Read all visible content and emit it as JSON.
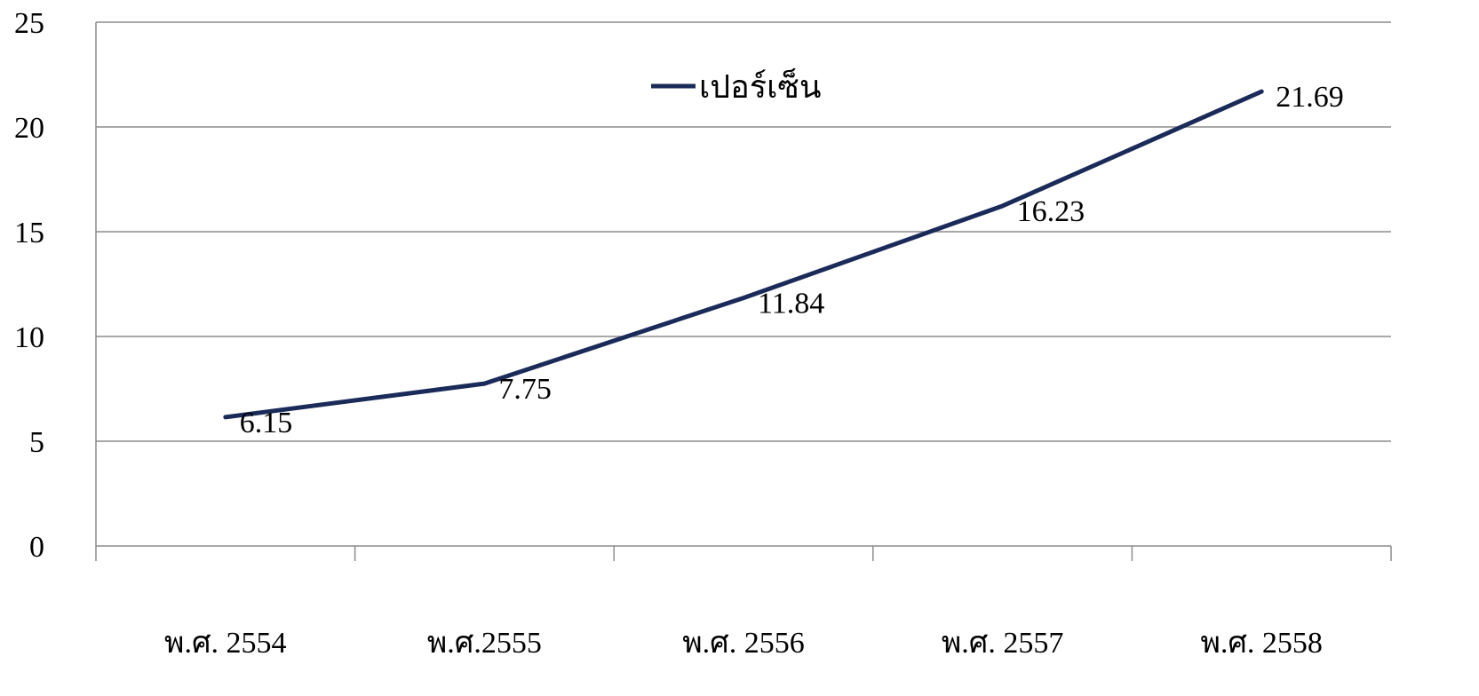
{
  "chart_data": {
    "type": "line",
    "title": "",
    "xlabel": "",
    "ylabel": "",
    "categories": [
      "พ.ศ. 2554",
      "พ.ศ.2555",
      "พ.ศ. 2556",
      "พ.ศ. 2557",
      "พ.ศ. 2558"
    ],
    "series": [
      {
        "name": "เปอร์เซ็น",
        "values": [
          6.15,
          7.75,
          11.84,
          16.23,
          21.69
        ],
        "data_labels": [
          "6.15",
          "7.75",
          "11.84",
          "16.23",
          "21.69"
        ],
        "color": "#1a2b5a"
      }
    ],
    "ylim": [
      0,
      25
    ],
    "yticks": [
      0,
      5,
      10,
      15,
      20,
      25
    ],
    "ytick_labels": [
      "0",
      "5",
      "10",
      "15",
      "20",
      "25"
    ],
    "grid": "horizontal",
    "legend": "top-center"
  },
  "colors": {
    "grid": "#8c8c8c",
    "axis": "#8c8c8c",
    "line": "#1a2b5a"
  }
}
